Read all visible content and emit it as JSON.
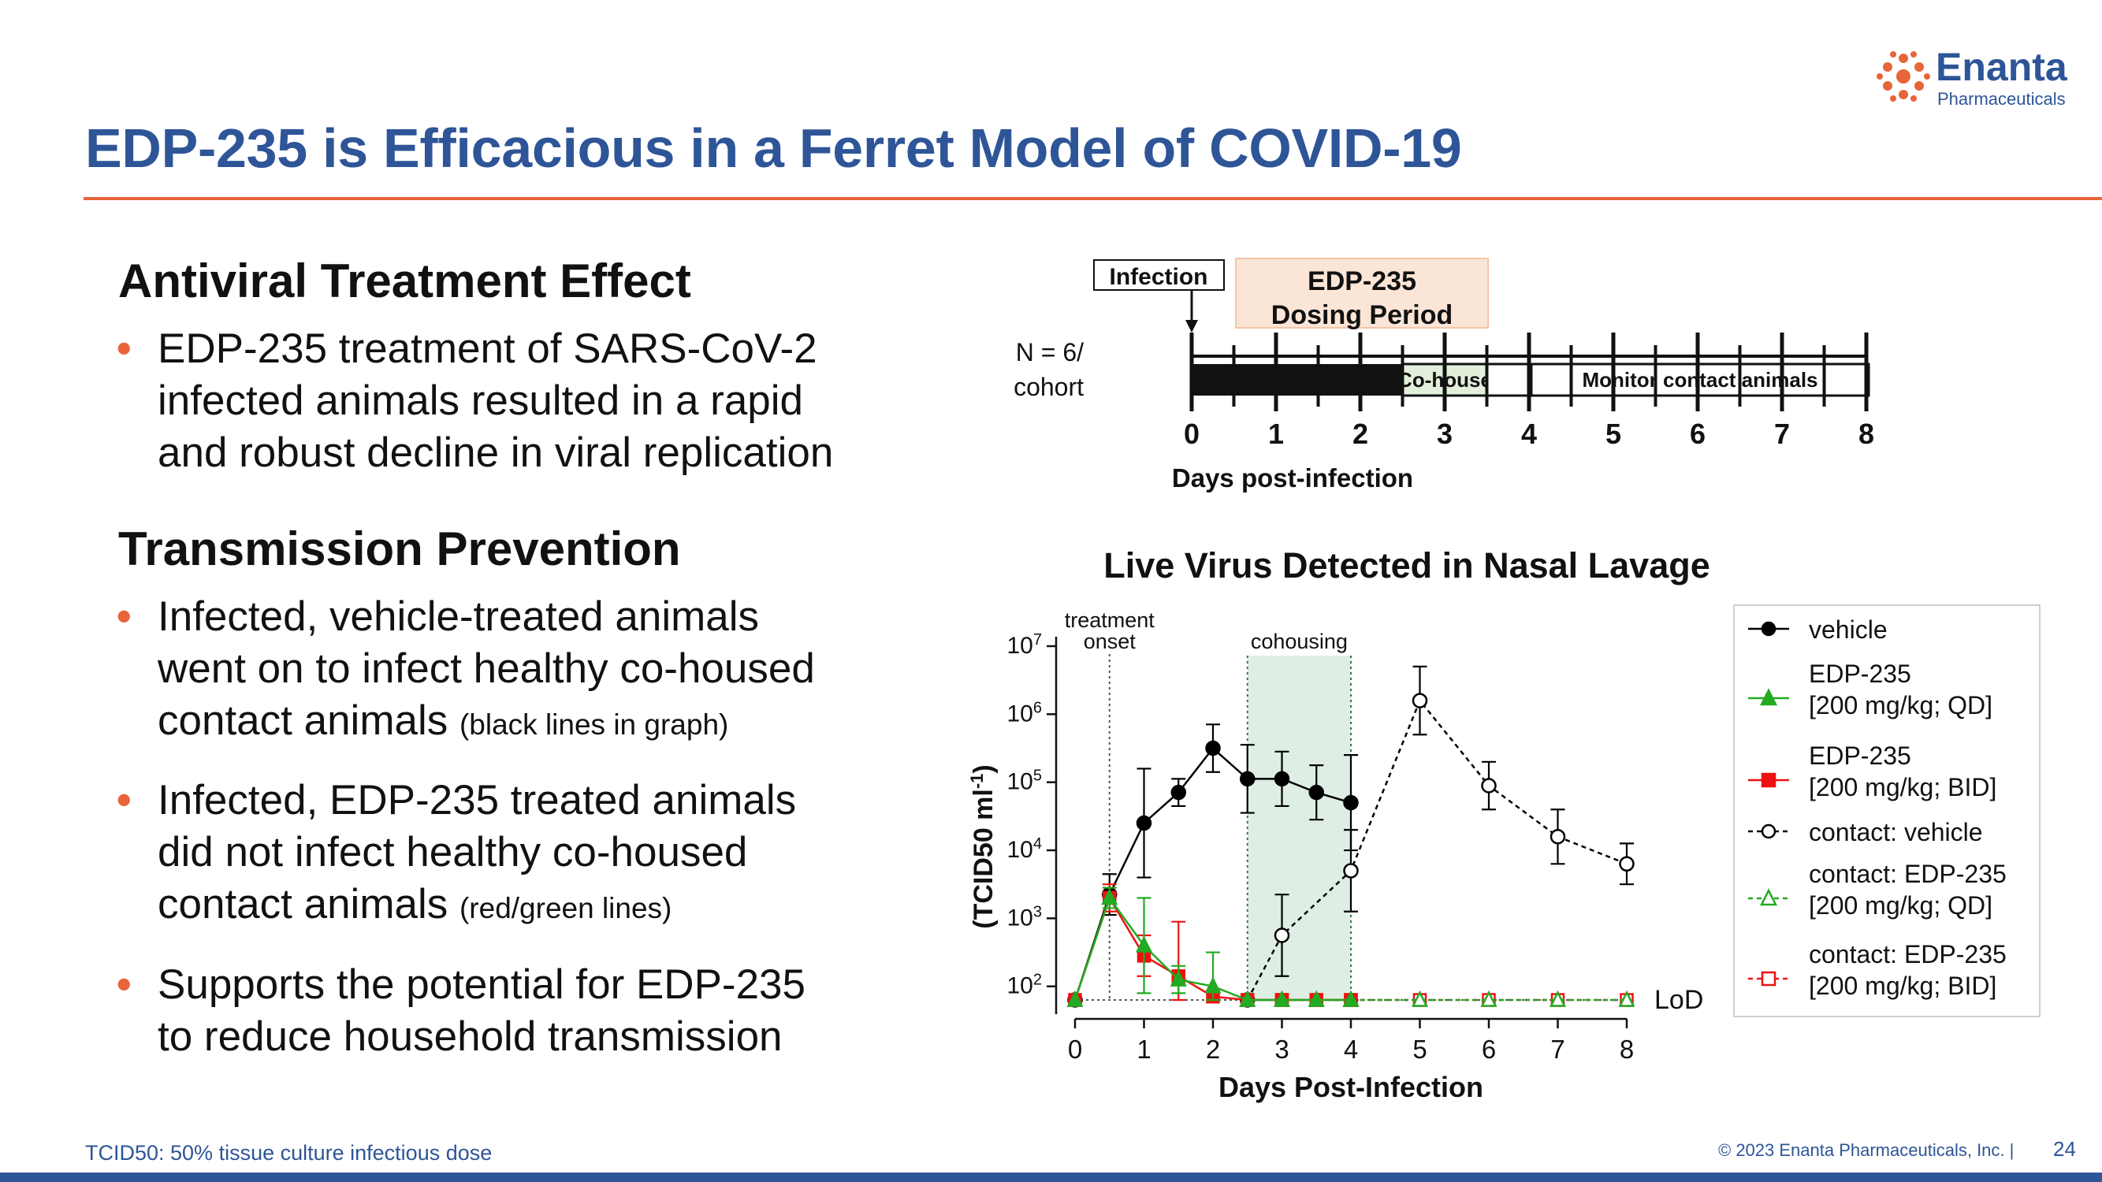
{
  "header": {
    "title": "EDP-235 is Efficacious in a Ferret Model of COVID-19",
    "logo_name": "Enanta",
    "logo_sub": "Pharmaceuticals"
  },
  "sections": [
    {
      "heading": "Antiviral Treatment Effect",
      "bullets": [
        {
          "lines": [
            "EDP-235 treatment of SARS-CoV-2",
            "infected animals resulted in a rapid",
            "and robust decline in viral replication"
          ],
          "note": ""
        }
      ]
    },
    {
      "heading": "Transmission Prevention",
      "bullets": [
        {
          "lines": [
            "Infected, vehicle-treated animals",
            "went on to infect healthy co-housed",
            "contact animals"
          ],
          "note": "(black lines in graph)"
        },
        {
          "lines": [
            "Infected, EDP-235 treated animals",
            "did not infect healthy co-housed",
            "contact animals"
          ],
          "note": "(red/green lines)"
        },
        {
          "lines": [
            "Supports the potential for EDP-235",
            "to reduce household transmission"
          ],
          "note": ""
        }
      ]
    }
  ],
  "timeline": {
    "infection_label": "Infection",
    "dosing_label": [
      "EDP-235",
      "Dosing Period"
    ],
    "n_label": [
      "N = 6/",
      "cohort"
    ],
    "cohouse_label": "Co-house",
    "monitor_label": "Monitor contact animals",
    "days": [
      "0",
      "1",
      "2",
      "3",
      "4",
      "5",
      "6",
      "7",
      "8"
    ],
    "xlabel": "Days post-infection",
    "colors": {
      "dosing_fill": "#fbe5d6",
      "cohouse_fill": "#e2efda"
    }
  },
  "chart_data": {
    "type": "line",
    "title": "Live Virus Detected in Nasal Lavage",
    "xlabel": "Days Post-Infection",
    "ylabel": "(TCID50 ml-1)",
    "ylabel_main": "(TCID50 ml",
    "ylabel_sup": "-1",
    "ylabel_end": ")",
    "log_scale": true,
    "xlim": [
      0,
      8
    ],
    "ylim_log10": [
      1.8,
      7
    ],
    "x_ticks": [
      "0",
      "1",
      "2",
      "3",
      "4",
      "5",
      "6",
      "7",
      "8"
    ],
    "y_ticks": [
      {
        "base": "10",
        "exp": "2",
        "v": 2
      },
      {
        "base": "10",
        "exp": "3",
        "v": 3
      },
      {
        "base": "10",
        "exp": "4",
        "v": 4
      },
      {
        "base": "10",
        "exp": "5",
        "v": 5
      },
      {
        "base": "10",
        "exp": "6",
        "v": 6
      },
      {
        "base": "10",
        "exp": "7",
        "v": 7
      }
    ],
    "annotations": {
      "treatment_onset": [
        "treatment",
        "onset"
      ],
      "treatment_onset_x": 0.5,
      "cohousing": "cohousing",
      "cohousing_range": [
        2.5,
        4
      ],
      "lod": "LoD",
      "lod_log10": 1.8
    },
    "series": [
      {
        "name": "vehicle",
        "color": "#000000",
        "marker": "circle",
        "filled": true,
        "dashed": false,
        "x": [
          0,
          0.5,
          1,
          1.5,
          2,
          2.5,
          3,
          3.5,
          4
        ],
        "log10": [
          1.8,
          3.35,
          4.4,
          4.85,
          5.5,
          5.05,
          5.05,
          4.85,
          4.7
        ],
        "err": [
          0,
          0.3,
          0.8,
          0.2,
          0.35,
          0.5,
          0.4,
          0.4,
          0.7
        ]
      },
      {
        "name": "EDP-235 [200 mg/kg; QD]",
        "color": "#22aa22",
        "marker": "triangle",
        "filled": true,
        "dashed": false,
        "x": [
          0,
          0.5,
          1,
          1.5,
          2,
          2.5,
          3,
          3.5,
          4
        ],
        "log10": [
          1.8,
          3.3,
          2.6,
          2.1,
          2.0,
          1.8,
          1.8,
          1.8,
          1.8
        ],
        "err": [
          0,
          0.15,
          0.7,
          0.2,
          0.5,
          0,
          0,
          0,
          0
        ]
      },
      {
        "name": "EDP-235 [200 mg/kg; BID]",
        "color": "#ee1111",
        "marker": "square",
        "filled": true,
        "dashed": false,
        "x": [
          0,
          0.5,
          1,
          1.5,
          2,
          2.5,
          3,
          3.5,
          4
        ],
        "log10": [
          1.8,
          3.3,
          2.45,
          2.15,
          1.85,
          1.8,
          1.8,
          1.8,
          1.8
        ],
        "err": [
          0,
          0.2,
          0.3,
          0.8,
          0,
          0,
          0,
          0,
          0
        ]
      },
      {
        "name": "contact: vehicle",
        "color": "#000000",
        "marker": "circle",
        "filled": false,
        "dashed": true,
        "x": [
          2.5,
          3,
          4,
          5,
          6,
          7,
          8
        ],
        "log10": [
          1.8,
          2.75,
          3.7,
          6.2,
          4.95,
          4.2,
          3.8
        ],
        "err": [
          0,
          0.6,
          0.6,
          0.5,
          0.35,
          0.4,
          0.3
        ]
      },
      {
        "name": "contact: EDP-235 [200 mg/kg; QD]",
        "color": "#22aa22",
        "marker": "triangle",
        "filled": false,
        "dashed": true,
        "x": [
          2.5,
          3,
          3.5,
          4,
          5,
          6,
          7,
          8
        ],
        "log10": [
          1.8,
          1.8,
          1.8,
          1.8,
          1.8,
          1.8,
          1.8,
          1.8
        ],
        "err": [
          0,
          0,
          0,
          0,
          0,
          0,
          0,
          0
        ]
      },
      {
        "name": "contact: EDP-235 [200 mg/kg; BID]",
        "color": "#ee1111",
        "marker": "square",
        "filled": false,
        "dashed": true,
        "x": [
          2.5,
          3,
          3.5,
          4,
          5,
          6,
          7,
          8
        ],
        "log10": [
          1.8,
          1.8,
          1.8,
          1.8,
          1.8,
          1.8,
          1.8,
          1.8
        ],
        "err": [
          0,
          0,
          0,
          0,
          0,
          0,
          0,
          0
        ]
      }
    ],
    "legend": [
      {
        "lines": [
          "vehicle"
        ],
        "series": 0
      },
      {
        "lines": [
          "EDP-235",
          "[200 mg/kg; QD]"
        ],
        "series": 1
      },
      {
        "lines": [
          "EDP-235",
          "[200 mg/kg; BID]"
        ],
        "series": 2
      },
      {
        "lines": [
          "contact: vehicle"
        ],
        "series": 3
      },
      {
        "lines": [
          "contact: EDP-235",
          "[200 mg/kg; QD]"
        ],
        "series": 4
      },
      {
        "lines": [
          "contact: EDP-235",
          "[200 mg/kg; BID]"
        ],
        "series": 5
      }
    ]
  },
  "footer": {
    "footnote": "TCID50: 50% tissue culture infectious dose",
    "copyright": "© 2023  Enanta Pharmaceuticals, Inc.   |",
    "page": "24"
  }
}
